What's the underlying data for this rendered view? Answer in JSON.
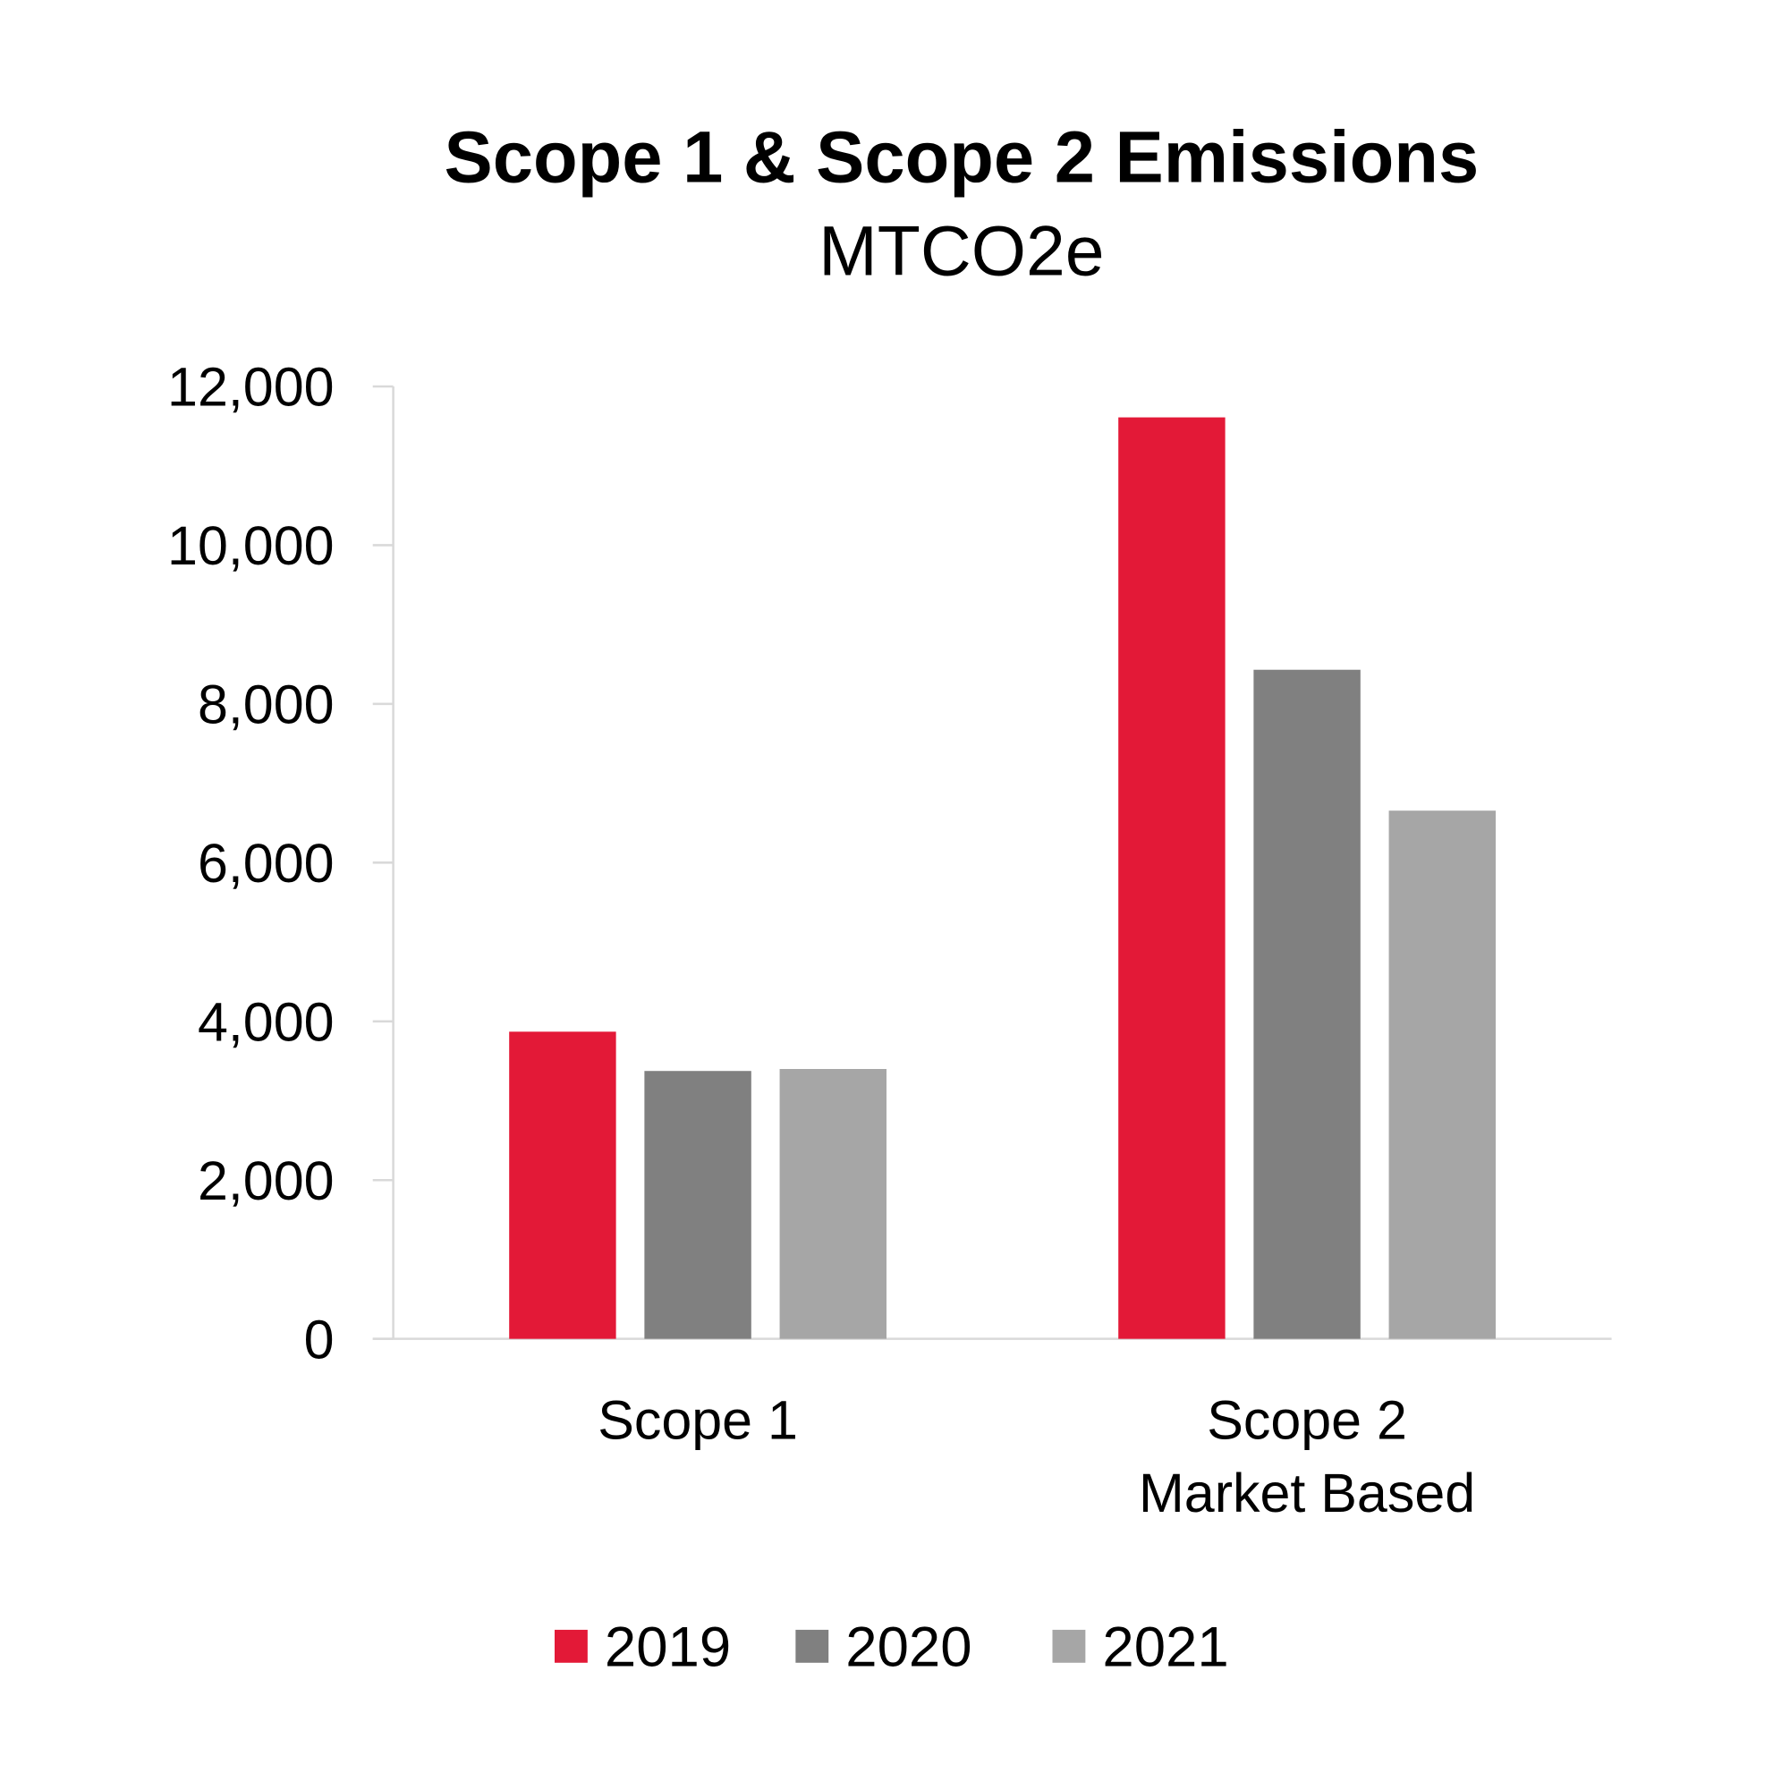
{
  "chart_data": {
    "type": "bar",
    "title": "Scope 1 & Scope 2 Emissions",
    "subtitle": "MTCO2e",
    "xlabel": "",
    "ylabel": "",
    "categories": [
      [
        "Scope 1"
      ],
      [
        "Scope 2",
        "Market Based"
      ]
    ],
    "series": [
      {
        "name": "2019",
        "color": "#e31937",
        "values": [
          3870,
          11610
        ]
      },
      {
        "name": "2020",
        "color": "#808080",
        "values": [
          3375,
          8430
        ]
      },
      {
        "name": "2021",
        "color": "#a6a6a6",
        "values": [
          3400,
          6655
        ]
      }
    ],
    "ylim": [
      0,
      12000
    ],
    "yticks": [
      0,
      2000,
      4000,
      6000,
      8000,
      10000,
      12000
    ],
    "ytick_labels": [
      "0",
      "2,000",
      "4,000",
      "6,000",
      "8,000",
      "10,000",
      "12,000"
    ],
    "grid": false,
    "legend": "bottom"
  }
}
